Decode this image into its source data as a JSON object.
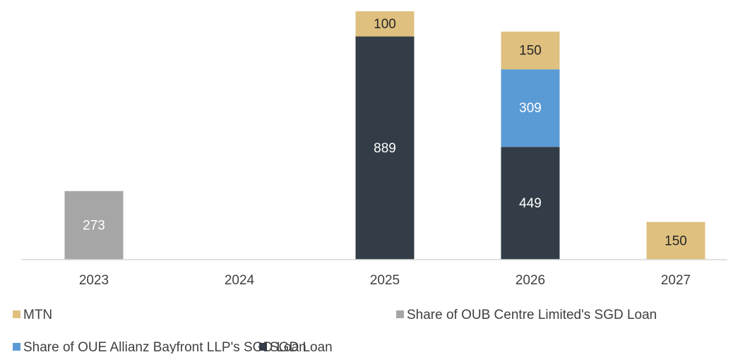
{
  "chart_data": {
    "type": "stacked_bar",
    "categories": [
      "2023",
      "2024",
      "2025",
      "2026",
      "2027"
    ],
    "series": [
      {
        "name": "MTN",
        "color": "#dfc07f",
        "values": [
          null,
          null,
          100,
          150,
          150
        ]
      },
      {
        "name": "Share of OUB Centre Limited's SGD Loan",
        "color": "#a6a6a6",
        "values": [
          273,
          null,
          null,
          null,
          null
        ]
      },
      {
        "name": "Share of OUE Allianz Bayfront LLP's SGD Loan",
        "color": "#5b9bd5",
        "values": [
          null,
          null,
          null,
          309,
          null
        ]
      },
      {
        "name": "SGD Loan",
        "color": "#333d47",
        "values": [
          null,
          null,
          889,
          449,
          null
        ]
      }
    ]
  }
}
